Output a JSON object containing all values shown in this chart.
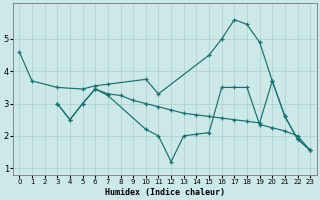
{
  "bg_color": "#cde8e8",
  "grid_color": "#aacfcf",
  "line_color": "#1a6e6e",
  "xlabel": "Humidex (Indice chaleur)",
  "xlim": [
    -0.5,
    23.5
  ],
  "ylim": [
    0.8,
    6.1
  ],
  "yticks": [
    1,
    2,
    3,
    4,
    5
  ],
  "xticks": [
    0,
    1,
    2,
    3,
    4,
    5,
    6,
    7,
    8,
    9,
    10,
    11,
    12,
    13,
    14,
    15,
    16,
    17,
    18,
    19,
    20,
    21,
    22,
    23
  ],
  "lineA_x": [
    0,
    1,
    3,
    5,
    6,
    7,
    10,
    11,
    15,
    16,
    17,
    18,
    19,
    20,
    21,
    22,
    23
  ],
  "lineA_y": [
    4.6,
    3.7,
    3.5,
    3.45,
    3.55,
    3.6,
    3.75,
    3.3,
    4.5,
    5.0,
    5.6,
    5.45,
    4.9,
    3.7,
    2.6,
    1.9,
    1.55
  ],
  "lineB_x": [
    3,
    4,
    5,
    6,
    7,
    8,
    9,
    10,
    11,
    12,
    13,
    14,
    15,
    16,
    17,
    18,
    19,
    20,
    21,
    22,
    23
  ],
  "lineB_y": [
    3.0,
    2.5,
    3.0,
    3.45,
    3.3,
    3.25,
    3.1,
    3.0,
    2.9,
    2.8,
    2.7,
    2.65,
    2.6,
    2.55,
    2.5,
    2.45,
    2.4,
    3.7,
    2.6,
    1.9,
    1.55
  ],
  "lineC_x": [
    3,
    4,
    5,
    6,
    7,
    10,
    11,
    12,
    13,
    14,
    15,
    16,
    17,
    18,
    19,
    20,
    21,
    22,
    23
  ],
  "lineC_y": [
    3.0,
    2.5,
    3.0,
    3.45,
    3.25,
    2.2,
    2.0,
    1.2,
    2.0,
    2.05,
    2.1,
    3.5,
    3.5,
    3.5,
    2.35,
    2.25,
    2.15,
    2.0,
    1.55
  ]
}
